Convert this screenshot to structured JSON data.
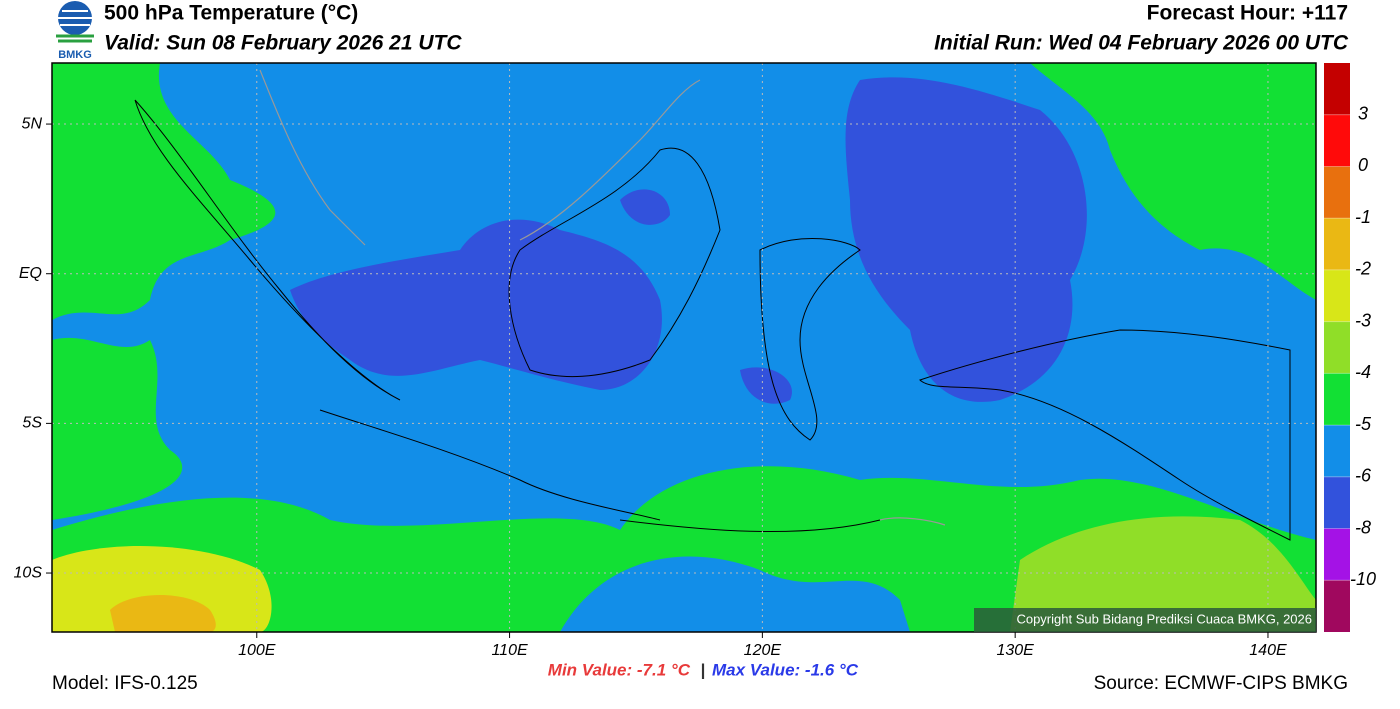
{
  "header": {
    "logo_text": "BMKG",
    "title": "500 hPa Temperature (°C)",
    "valid": "Valid: Sun 08 February 2026 21 UTC",
    "forecast_hour": "Forecast Hour: +117",
    "initial_run": "Initial Run: Wed 04 February 2026 00 UTC"
  },
  "map": {
    "lonlim": [
      91.9,
      141.9
    ],
    "latlim": [
      -11.97,
      7.04
    ],
    "lon_ticks": [
      {
        "value": 100,
        "label": "100E"
      },
      {
        "value": 110,
        "label": "110E"
      },
      {
        "value": 120,
        "label": "120E"
      },
      {
        "value": 130,
        "label": "130E"
      },
      {
        "value": 140,
        "label": "140E"
      }
    ],
    "lat_ticks": [
      {
        "value": 5,
        "label": "5N"
      },
      {
        "value": 0,
        "label": "EQ"
      },
      {
        "value": -5,
        "label": "5S"
      },
      {
        "value": -10,
        "label": "10S"
      }
    ],
    "grid": true,
    "copyright": "Copyright Sub Bidang Prediksi Cuaca BMKG, 2026"
  },
  "colorbar": {
    "levels": [
      3,
      0,
      -1,
      -2,
      -3,
      -4,
      -5,
      -6,
      -8,
      -10
    ],
    "colors": [
      "#c40000",
      "#ff0a0a",
      "#e8700e",
      "#eab814",
      "#d8e618",
      "#90de28",
      "#12e034",
      "#128ee8",
      "#3252dc",
      "#a412e6",
      "#a0085e"
    ]
  },
  "footer": {
    "model": "Model: IFS-0.125",
    "min_value": "Min Value: -7.1 °C",
    "separator": "|",
    "max_value": "Max Value: -1.6 °C",
    "source": "Source: ECMWF-CIPS BMKG"
  }
}
